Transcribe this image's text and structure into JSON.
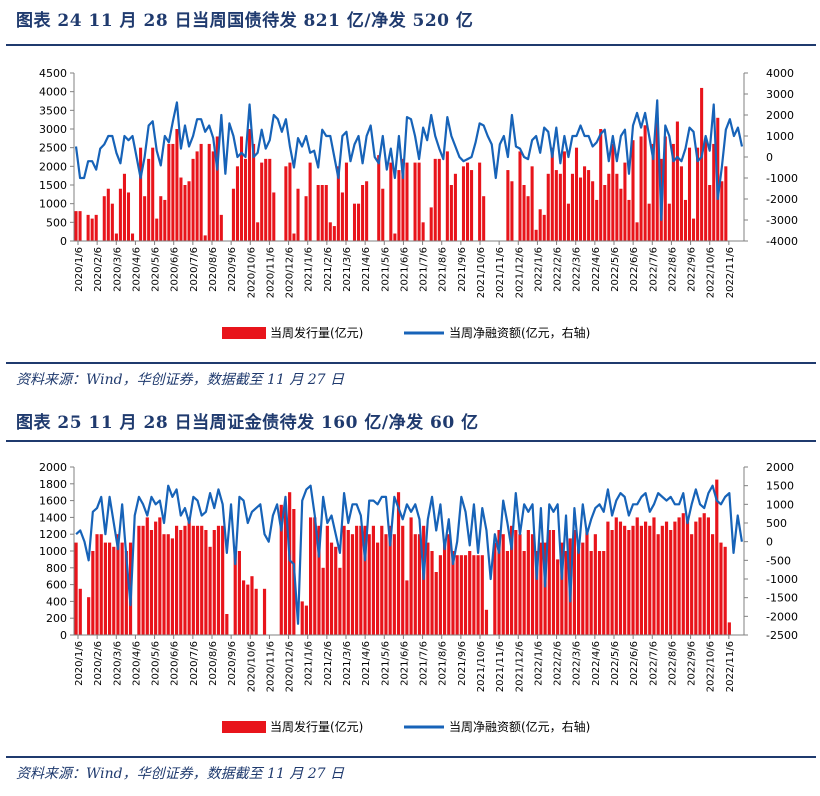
{
  "figures": [
    {
      "title": "图表 24 11 月 28 日当周国债待发 821 亿/净发 520 亿",
      "source": "资料来源：Wind，华创证券，数据截至 11 月 27 日"
    },
    {
      "title": "图表 25 11 月 28 日当周证金债待发 160 亿/净发 60 亿",
      "source": "资料来源：Wind，华创证券，数据截至 11 月 27 日"
    }
  ],
  "colors": {
    "bar": "#e8141b",
    "line": "#1763b8",
    "title": "#1f3a6e",
    "axis": "#808080"
  },
  "chart_data": [
    {
      "type": "bar",
      "x_tick_labels": [
        "2020/1/6",
        "2020/2/6",
        "2020/3/6",
        "2020/4/6",
        "2020/5/6",
        "2020/6/6",
        "2020/7/6",
        "2020/8/6",
        "2020/9/6",
        "2020/10/6",
        "2020/11/6",
        "2020/12/6",
        "2021/1/6",
        "2021/2/6",
        "2021/3/6",
        "2021/4/6",
        "2021/5/6",
        "2021/6/6",
        "2021/7/6",
        "2021/8/6",
        "2021/9/6",
        "2021/10/6",
        "2021/11/6",
        "2021/12/6",
        "2022/1/6",
        "2022/2/6",
        "2022/3/6",
        "2022/4/6",
        "2022/5/6",
        "2022/6/6",
        "2022/7/6",
        "2022/8/6",
        "2022/9/6",
        "2022/10/6",
        "2022/11/6"
      ],
      "y_left": {
        "min": 0,
        "max": 4500,
        "ticks": [
          0,
          500,
          1000,
          1500,
          2000,
          2500,
          3000,
          3500,
          4000,
          4500
        ]
      },
      "y_right": {
        "min": -4000,
        "max": 4000,
        "ticks": [
          -4000,
          -3000,
          -2000,
          -1000,
          0,
          1000,
          2000,
          3000,
          4000
        ]
      },
      "series": [
        {
          "name": "当周发行量(亿元)",
          "axis": "left",
          "kind": "bar",
          "values": [
            800,
            800,
            0,
            700,
            600,
            700,
            0,
            1200,
            1400,
            1000,
            200,
            1400,
            1800,
            1300,
            200,
            0,
            2500,
            1200,
            2200,
            2500,
            600,
            1200,
            1100,
            2600,
            2600,
            3000,
            1700,
            1500,
            1600,
            2200,
            2400,
            2600,
            150,
            2600,
            2400,
            2800,
            700,
            0,
            0,
            1400,
            2000,
            2800,
            2200,
            3000,
            2600,
            500,
            2100,
            2200,
            2200,
            1300,
            0,
            0,
            2000,
            2100,
            200,
            1400,
            0,
            1200,
            2100,
            0,
            1500,
            1500,
            1500,
            500,
            400,
            2000,
            1300,
            2100,
            0,
            1000,
            1000,
            1500,
            1600,
            0,
            0,
            2300,
            1400,
            0,
            2100,
            200,
            1900,
            2200,
            2100,
            0,
            2100,
            2100,
            500,
            0,
            900,
            2200,
            2200,
            0,
            2400,
            1500,
            1800,
            0,
            2000,
            2100,
            1900,
            0,
            2100,
            1200,
            0,
            0,
            0,
            0,
            0,
            1900,
            1600,
            0,
            2400,
            1500,
            1200,
            2000,
            300,
            850,
            700,
            1800,
            2500,
            1900,
            1800,
            2400,
            1000,
            1800,
            2500,
            1700,
            2000,
            1900,
            1600,
            1100,
            3000,
            1500,
            1800,
            2600,
            1800,
            1400,
            2100,
            1100,
            2700,
            500,
            2800,
            3100,
            1000,
            2600,
            3300,
            2200,
            2800,
            1000,
            2600,
            3200,
            2000,
            1100,
            2500,
            600,
            2500,
            4100,
            2700,
            1500,
            2600,
            3300,
            1600,
            2000
          ]
        },
        {
          "name": "当周净融资额(亿元，右轴)",
          "axis": "right",
          "kind": "line",
          "values": [
            500,
            -1000,
            -1000,
            -200,
            -200,
            -600,
            400,
            600,
            1000,
            1000,
            200,
            -300,
            1000,
            800,
            1000,
            0,
            -1000,
            0,
            1500,
            1700,
            300,
            -400,
            1000,
            700,
            1700,
            2600,
            400,
            1500,
            500,
            1000,
            1800,
            1800,
            1200,
            1500,
            900,
            -600,
            2000,
            -800,
            1600,
            1000,
            0,
            200,
            0,
            2500,
            0,
            200,
            1300,
            400,
            800,
            2000,
            1800,
            1200,
            1800,
            500,
            -500,
            900,
            500,
            1000,
            200,
            300,
            -500,
            1300,
            1000,
            1000,
            0,
            -1000,
            1000,
            1200,
            -200,
            600,
            1000,
            -300,
            1000,
            1500,
            0,
            -300,
            1000,
            -600,
            400,
            -1000,
            1000,
            -1000,
            1900,
            1800,
            1000,
            -100,
            1400,
            800,
            2000,
            1000,
            400,
            -100,
            1900,
            1000,
            500,
            0,
            -200,
            -100,
            0,
            700,
            1600,
            1500,
            1000,
            600,
            -1000,
            600,
            1000,
            0,
            2000,
            500,
            400,
            0,
            -100,
            800,
            1000,
            200,
            1400,
            1200,
            0,
            1400,
            -300,
            1000,
            0,
            1000,
            1000,
            1500,
            1000,
            1000,
            500,
            700,
            1100,
            1300,
            -200,
            1000,
            -200,
            1000,
            1300,
            -800,
            1500,
            2100,
            1400,
            2100,
            1000,
            -100,
            2700,
            -3000,
            1500,
            1000,
            -200,
            0,
            -200,
            400,
            1400,
            1200,
            -200,
            0,
            1000,
            300,
            2500,
            -2000,
            -500,
            1300,
            1800,
            1000,
            1400,
            500
          ]
        }
      ]
    },
    {
      "type": "bar",
      "x_tick_labels": [
        "2020/1/6",
        "2020/2/6",
        "2020/3/6",
        "2020/4/6",
        "2020/5/6",
        "2020/6/6",
        "2020/7/6",
        "2020/8/6",
        "2020/9/6",
        "2020/10/6",
        "2020/11/6",
        "2020/12/6",
        "2021/1/6",
        "2021/2/6",
        "2021/3/6",
        "2021/4/6",
        "2021/5/6",
        "2021/6/6",
        "2021/7/6",
        "2021/8/6",
        "2021/9/6",
        "2021/10/6",
        "2021/11/6",
        "2021/12/6",
        "2022/1/6",
        "2022/2/6",
        "2022/3/6",
        "2022/4/6",
        "2022/5/6",
        "2022/6/6",
        "2022/7/6",
        "2022/8/6",
        "2022/9/6",
        "2022/10/6",
        "2022/11/6"
      ],
      "y_left": {
        "min": 0,
        "max": 2000,
        "ticks": [
          0,
          200,
          400,
          600,
          800,
          1000,
          1200,
          1400,
          1600,
          1800,
          2000
        ]
      },
      "y_right": {
        "min": -2500,
        "max": 2000,
        "ticks": [
          -2500,
          -2000,
          -1500,
          -1000,
          -500,
          0,
          500,
          1000,
          1500,
          2000
        ]
      },
      "series": [
        {
          "name": "当周发行量(亿元)",
          "axis": "left",
          "kind": "bar",
          "values": [
            1100,
            550,
            0,
            450,
            1000,
            1200,
            1200,
            1100,
            1100,
            1050,
            1200,
            1100,
            1000,
            1100,
            0,
            1300,
            1300,
            1400,
            1250,
            1350,
            1400,
            1200,
            1200,
            1150,
            1300,
            1250,
            1300,
            1400,
            1300,
            1300,
            1300,
            1250,
            1050,
            1250,
            1300,
            1300,
            250,
            0,
            1050,
            1000,
            650,
            600,
            700,
            550,
            0,
            550,
            0,
            0,
            0,
            1550,
            1550,
            1700,
            1500,
            0,
            400,
            350,
            1400,
            1400,
            1300,
            800,
            1300,
            1100,
            1050,
            800,
            1300,
            1250,
            1200,
            1300,
            1300,
            1300,
            1200,
            1300,
            1100,
            1300,
            1200,
            1300,
            1200,
            1700,
            1300,
            650,
            1400,
            1200,
            1200,
            1300,
            1100,
            1000,
            750,
            950,
            1100,
            1200,
            1000,
            950,
            950,
            950,
            1000,
            950,
            950,
            950,
            300,
            0,
            1100,
            1250,
            1200,
            1000,
            1300,
            1250,
            1200,
            1000,
            1250,
            1200,
            1000,
            1100,
            1100,
            1250,
            1250,
            900,
            1100,
            1000,
            1150,
            1250,
            1050,
            1100,
            1250,
            1000,
            1200,
            1000,
            1000,
            1350,
            1250,
            1400,
            1350,
            1300,
            1250,
            1300,
            1400,
            1300,
            1350,
            1300,
            1400,
            1200,
            1300,
            1350,
            1250,
            1350,
            1400,
            1450,
            1400,
            1200,
            1350,
            1400,
            1450,
            1400,
            1200,
            1850,
            1100,
            1050,
            150
          ]
        },
        {
          "name": "当周净融资额(亿元，右轴)",
          "axis": "right",
          "kind": "line",
          "values": [
            200,
            300,
            0,
            -500,
            800,
            900,
            1200,
            200,
            1200,
            500,
            -200,
            1000,
            -400,
            -1700,
            700,
            1200,
            1000,
            700,
            1200,
            1000,
            1100,
            500,
            1500,
            1200,
            1400,
            700,
            900,
            500,
            1200,
            1100,
            700,
            800,
            1300,
            900,
            1400,
            1000,
            -300,
            1000,
            -600,
            1200,
            1100,
            500,
            800,
            900,
            1000,
            200,
            0,
            700,
            1000,
            300,
            1200,
            -500,
            -600,
            -2200,
            1100,
            1400,
            1500,
            700,
            -400,
            1200,
            500,
            700,
            200,
            -300,
            1300,
            500,
            1000,
            1000,
            700,
            -500,
            1100,
            1100,
            1000,
            1200,
            1200,
            -100,
            1200,
            900,
            600,
            1000,
            800,
            1000,
            600,
            -1000,
            600,
            1200,
            300,
            1000,
            -200,
            600,
            -600,
            0,
            1200,
            800,
            -100,
            1000,
            -300,
            900,
            300,
            -1000,
            200,
            -300,
            1100,
            500,
            -200,
            1300,
            200,
            1000,
            800,
            1000,
            -1000,
            900,
            -1200,
            1000,
            800,
            1000,
            -1000,
            700,
            -1600,
            900,
            -300,
            1000,
            200,
            600,
            900,
            1000,
            800,
            1400,
            700,
            1100,
            1300,
            1200,
            700,
            1000,
            1000,
            1200,
            1300,
            800,
            1000,
            1300,
            1200,
            1100,
            1200,
            1000,
            1000,
            1300,
            500,
            1000,
            1400,
            1000,
            900,
            1300,
            1500,
            1100,
            1000,
            1200,
            1300,
            -300,
            700,
            0
          ]
        }
      ]
    }
  ]
}
